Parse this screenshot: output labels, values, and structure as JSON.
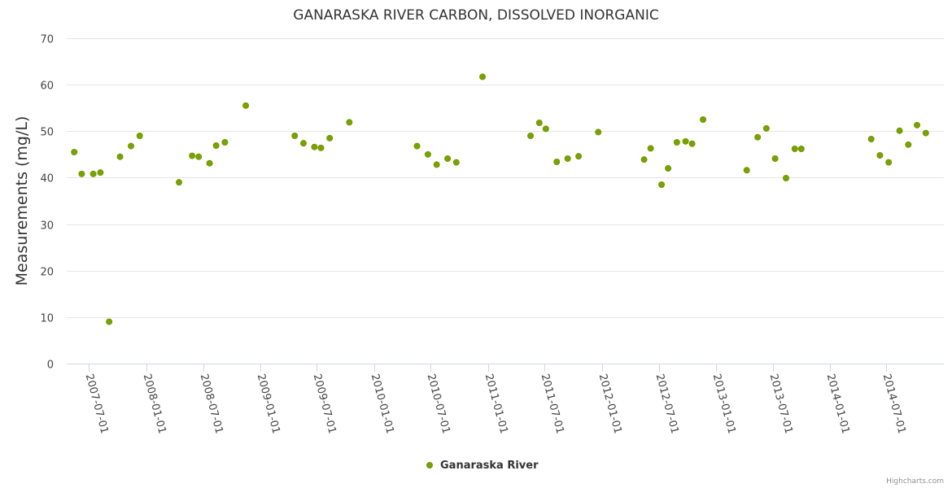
{
  "chart_data": {
    "type": "scatter",
    "title": "GANARASKA RIVER CARBON, DISSOLVED INORGANIC",
    "xlabel": "",
    "ylabel": "Measurements (mg/L)",
    "ylim": [
      0,
      70
    ],
    "y_ticks": [
      0,
      10,
      20,
      30,
      40,
      50,
      60,
      70
    ],
    "x_range": [
      "2007-04-21",
      "2015-01-01"
    ],
    "x_ticks": [
      "2007-07-01",
      "2008-01-01",
      "2008-07-01",
      "2009-01-01",
      "2009-07-01",
      "2010-01-01",
      "2010-07-01",
      "2011-01-01",
      "2011-07-01",
      "2012-01-01",
      "2012-07-01",
      "2013-01-01",
      "2013-07-01",
      "2014-01-01",
      "2014-07-01"
    ],
    "grid": true,
    "legend_position": "bottom-center",
    "series": [
      {
        "name": "Ganaraska River",
        "color": "#6aaa00",
        "border_color": "#8a8a00",
        "points": [
          [
            "2007-05-15",
            45.5
          ],
          [
            "2007-06-08",
            40.8
          ],
          [
            "2007-07-15",
            40.8
          ],
          [
            "2007-08-07",
            41.1
          ],
          [
            "2007-09-04",
            9.0
          ],
          [
            "2007-10-09",
            44.5
          ],
          [
            "2007-11-13",
            46.8
          ],
          [
            "2007-12-11",
            49.0
          ],
          [
            "2008-04-15",
            39.0
          ],
          [
            "2008-05-27",
            44.7
          ],
          [
            "2008-06-17",
            44.5
          ],
          [
            "2008-07-22",
            43.1
          ],
          [
            "2008-08-12",
            46.9
          ],
          [
            "2008-09-09",
            47.6
          ],
          [
            "2008-11-15",
            55.5
          ],
          [
            "2009-04-21",
            49.0
          ],
          [
            "2009-05-19",
            47.4
          ],
          [
            "2009-06-23",
            46.6
          ],
          [
            "2009-07-14",
            46.4
          ],
          [
            "2009-08-11",
            48.5
          ],
          [
            "2009-10-13",
            51.9
          ],
          [
            "2010-05-18",
            46.8
          ],
          [
            "2010-06-22",
            45.0
          ],
          [
            "2010-07-20",
            42.8
          ],
          [
            "2010-08-24",
            44.1
          ],
          [
            "2010-09-21",
            43.3
          ],
          [
            "2010-12-14",
            61.7
          ],
          [
            "2011-05-17",
            49.0
          ],
          [
            "2011-06-14",
            51.8
          ],
          [
            "2011-07-05",
            50.5
          ],
          [
            "2011-08-09",
            43.4
          ],
          [
            "2011-09-13",
            44.1
          ],
          [
            "2011-10-18",
            44.6
          ],
          [
            "2011-12-20",
            49.8
          ],
          [
            "2012-05-15",
            43.9
          ],
          [
            "2012-06-05",
            46.3
          ],
          [
            "2012-07-10",
            38.5
          ],
          [
            "2012-07-31",
            42.0
          ],
          [
            "2012-08-28",
            47.6
          ],
          [
            "2012-09-25",
            47.8
          ],
          [
            "2012-10-16",
            47.3
          ],
          [
            "2012-11-20",
            52.5
          ],
          [
            "2013-04-09",
            41.6
          ],
          [
            "2013-05-14",
            48.7
          ],
          [
            "2013-06-11",
            50.6
          ],
          [
            "2013-07-09",
            44.1
          ],
          [
            "2013-08-13",
            39.9
          ],
          [
            "2013-09-10",
            46.2
          ],
          [
            "2013-10-01",
            46.2
          ],
          [
            "2014-05-13",
            48.3
          ],
          [
            "2014-06-10",
            44.8
          ],
          [
            "2014-07-08",
            43.3
          ],
          [
            "2014-08-12",
            50.1
          ],
          [
            "2014-09-09",
            47.1
          ],
          [
            "2014-10-07",
            51.3
          ],
          [
            "2014-11-04",
            49.6
          ]
        ]
      }
    ]
  },
  "credit": "Highcharts.com"
}
